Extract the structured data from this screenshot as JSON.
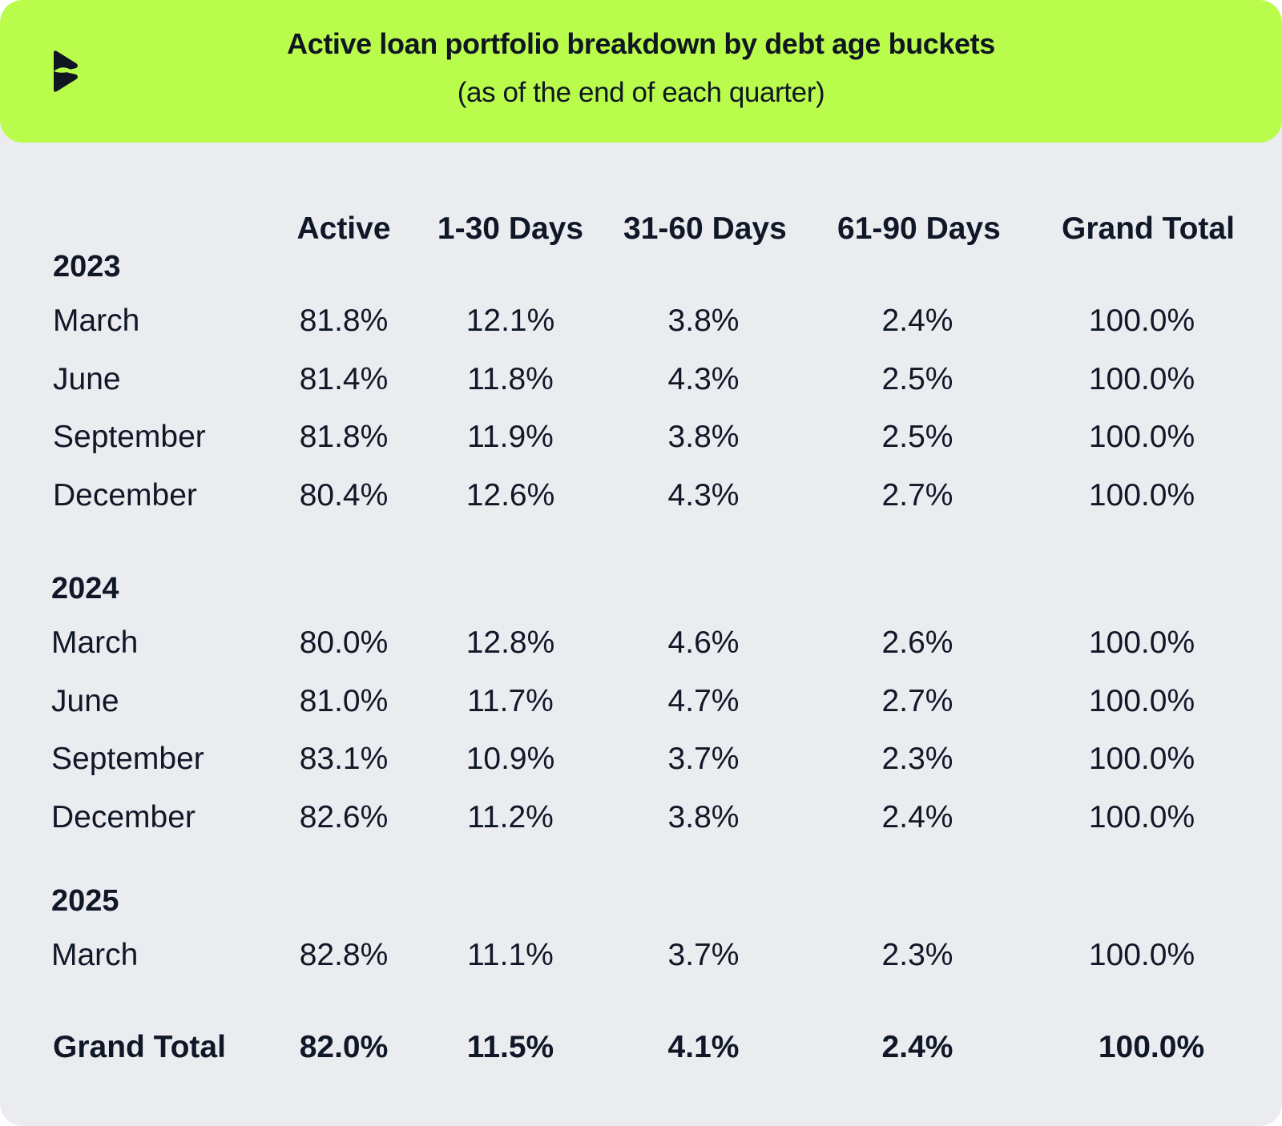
{
  "title": "Active loan portfolio breakdown by debt age buckets",
  "subtitle": "(as of the end of each quarter)",
  "logo_icon": "brand-logo-icon",
  "colors": {
    "header_bg": "#b9fc4c",
    "card_bg": "#ebecf0",
    "text": "#101828"
  },
  "chart_data": {
    "type": "table",
    "title": "Active loan portfolio breakdown by debt age buckets",
    "subtitle": "(as of the end of each quarter)",
    "columns": [
      "Active",
      "1-30 Days",
      "31-60 Days",
      "61-90 Days",
      "Grand Total"
    ],
    "groups": [
      {
        "year": "2023",
        "rows": [
          {
            "label": "March",
            "values": [
              "81.8%",
              "12.1%",
              "3.8%",
              "2.4%",
              "100.0%"
            ]
          },
          {
            "label": "June",
            "values": [
              "81.4%",
              "11.8%",
              "4.3%",
              "2.5%",
              "100.0%"
            ]
          },
          {
            "label": "September",
            "values": [
              "81.8%",
              "11.9%",
              "3.8%",
              "2.5%",
              "100.0%"
            ]
          },
          {
            "label": "December",
            "values": [
              "80.4%",
              "12.6%",
              "4.3%",
              "2.7%",
              "100.0%"
            ]
          }
        ]
      },
      {
        "year": "2024",
        "rows": [
          {
            "label": "March",
            "values": [
              "80.0%",
              "12.8%",
              "4.6%",
              "2.6%",
              "100.0%"
            ]
          },
          {
            "label": "June",
            "values": [
              "81.0%",
              "11.7%",
              "4.7%",
              "2.7%",
              "100.0%"
            ]
          },
          {
            "label": "September",
            "values": [
              "83.1%",
              "10.9%",
              "3.7%",
              "2.3%",
              "100.0%"
            ]
          },
          {
            "label": "December",
            "values": [
              "82.6%",
              "11.2%",
              "3.8%",
              "2.4%",
              "100.0%"
            ]
          }
        ]
      },
      {
        "year": "2025",
        "rows": [
          {
            "label": "March",
            "values": [
              "82.8%",
              "11.1%",
              "3.7%",
              "2.3%",
              "100.0%"
            ]
          }
        ]
      }
    ],
    "total": {
      "label": "Grand Total",
      "values": [
        "82.0%",
        "11.5%",
        "4.1%",
        "2.4%",
        "100.0%"
      ]
    }
  }
}
